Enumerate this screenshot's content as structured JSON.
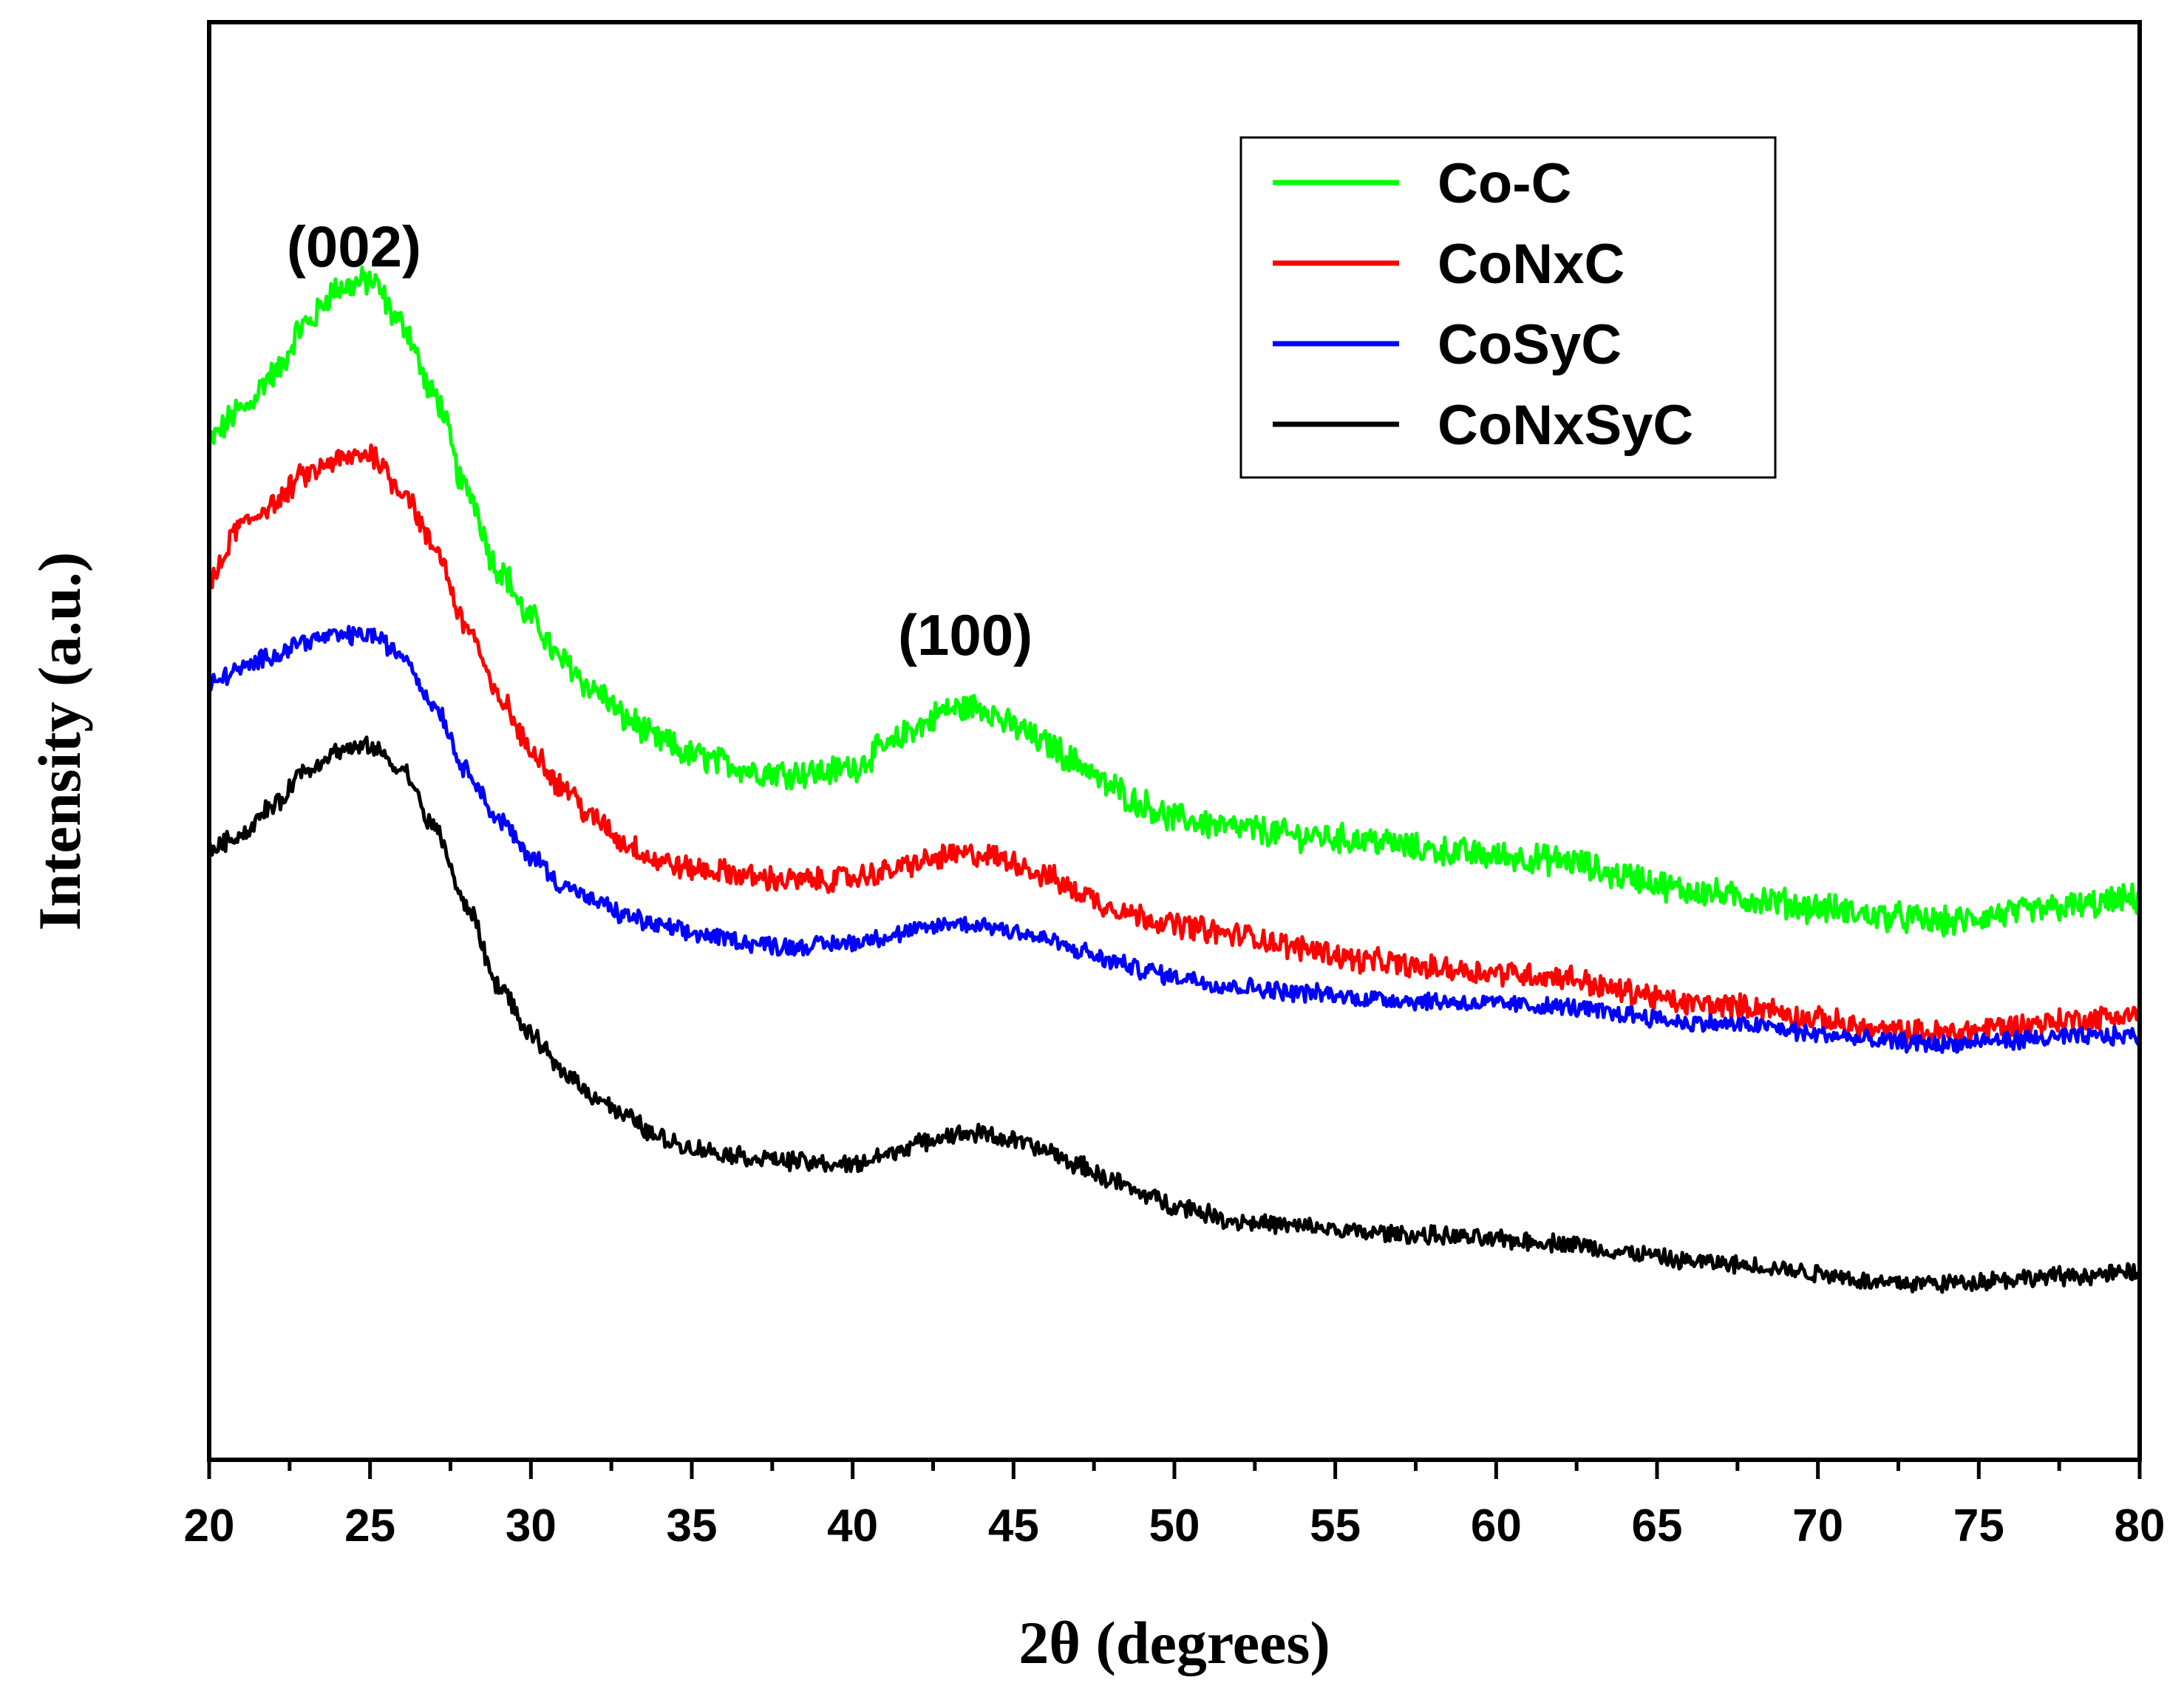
{
  "chart_data": {
    "type": "line",
    "title": "",
    "xlabel": "2θ (degrees)",
    "ylabel": "Intensity (a.u.)",
    "xlim": [
      20,
      80
    ],
    "ylim": [
      0,
      100
    ],
    "xticks": [
      20,
      25,
      30,
      35,
      40,
      45,
      50,
      55,
      60,
      65,
      70,
      75,
      80
    ],
    "yticks_shown": false,
    "grid": false,
    "legend_position": "top-right",
    "x": [
      20,
      21,
      22,
      23,
      24,
      25,
      26,
      27,
      28,
      29,
      30,
      31,
      32,
      33,
      34,
      35,
      36,
      37,
      38,
      39,
      40,
      41,
      42,
      43,
      44,
      45,
      46,
      47,
      48,
      49,
      50,
      52,
      54,
      56,
      58,
      60,
      62,
      64,
      66,
      68,
      70,
      72,
      74,
      76,
      78,
      80
    ],
    "series": [
      {
        "name": "Co-C",
        "color": "#00ff00",
        "values": [
          71,
          73,
          75.5,
          79,
          81.5,
          82,
          79,
          74,
          67.5,
          62,
          58.5,
          55.5,
          53.5,
          51.5,
          50,
          49,
          48.5,
          47.9,
          47.8,
          47.8,
          48.2,
          49.5,
          51,
          52.2,
          52.4,
          51,
          49.8,
          48.5,
          46.8,
          45.6,
          44.6,
          43.9,
          43.4,
          43.1,
          42.4,
          42,
          41.7,
          40.6,
          39.6,
          39,
          38.4,
          37.8,
          37.4,
          38,
          38.5,
          39
        ]
      },
      {
        "name": "CoNxC",
        "color": "#ff0000",
        "values": [
          61,
          65,
          66.5,
          68.5,
          69.5,
          70,
          67.5,
          63.5,
          58,
          53,
          49.5,
          46.8,
          44.5,
          42.8,
          41.6,
          41.1,
          40.9,
          40.5,
          40.3,
          40.3,
          40.5,
          40.9,
          41.5,
          42,
          42.1,
          41.6,
          40.6,
          39.5,
          38.5,
          37.8,
          37.2,
          36.5,
          35.6,
          34.7,
          34.2,
          33.9,
          33.6,
          32.6,
          31.7,
          31.5,
          30.6,
          29.8,
          29.7,
          30.2,
          30.6,
          31
        ]
      },
      {
        "name": "CoSyC",
        "color": "#0000ff",
        "values": [
          54,
          55,
          56,
          57,
          57.3,
          57.4,
          56,
          52.5,
          48,
          44.5,
          42,
          40,
          38.8,
          37.8,
          37.1,
          36.6,
          36.3,
          35.9,
          35.7,
          35.8,
          36,
          36.4,
          36.8,
          37.3,
          37.2,
          36.8,
          36.2,
          35.4,
          34.7,
          34.1,
          33.6,
          32.9,
          32.5,
          32.1,
          31.9,
          31.7,
          31.5,
          31,
          30.4,
          30.2,
          29.6,
          29.1,
          28.9,
          29.2,
          29.4,
          29.5
        ]
      },
      {
        "name": "CoNxSyC",
        "color": "#000000",
        "values": [
          42.5,
          43.5,
          45.5,
          48,
          49.3,
          49.6,
          48,
          44,
          38.5,
          33,
          29.5,
          27,
          25.3,
          23.8,
          22.4,
          21.7,
          21.3,
          21,
          20.8,
          20.6,
          20.5,
          21.2,
          22,
          22.6,
          22.7,
          22.2,
          21.5,
          20.5,
          19.5,
          18.5,
          17.7,
          16.6,
          16.2,
          15.8,
          15.6,
          15.3,
          15.1,
          14.4,
          13.8,
          13.5,
          13,
          12.3,
          12.3,
          12.6,
          12.8,
          13
        ]
      }
    ],
    "annotations": [
      {
        "text": "(002)",
        "x": 24.5,
        "y": 83
      },
      {
        "text": "(100)",
        "x": 43.5,
        "y": 56
      }
    ]
  }
}
